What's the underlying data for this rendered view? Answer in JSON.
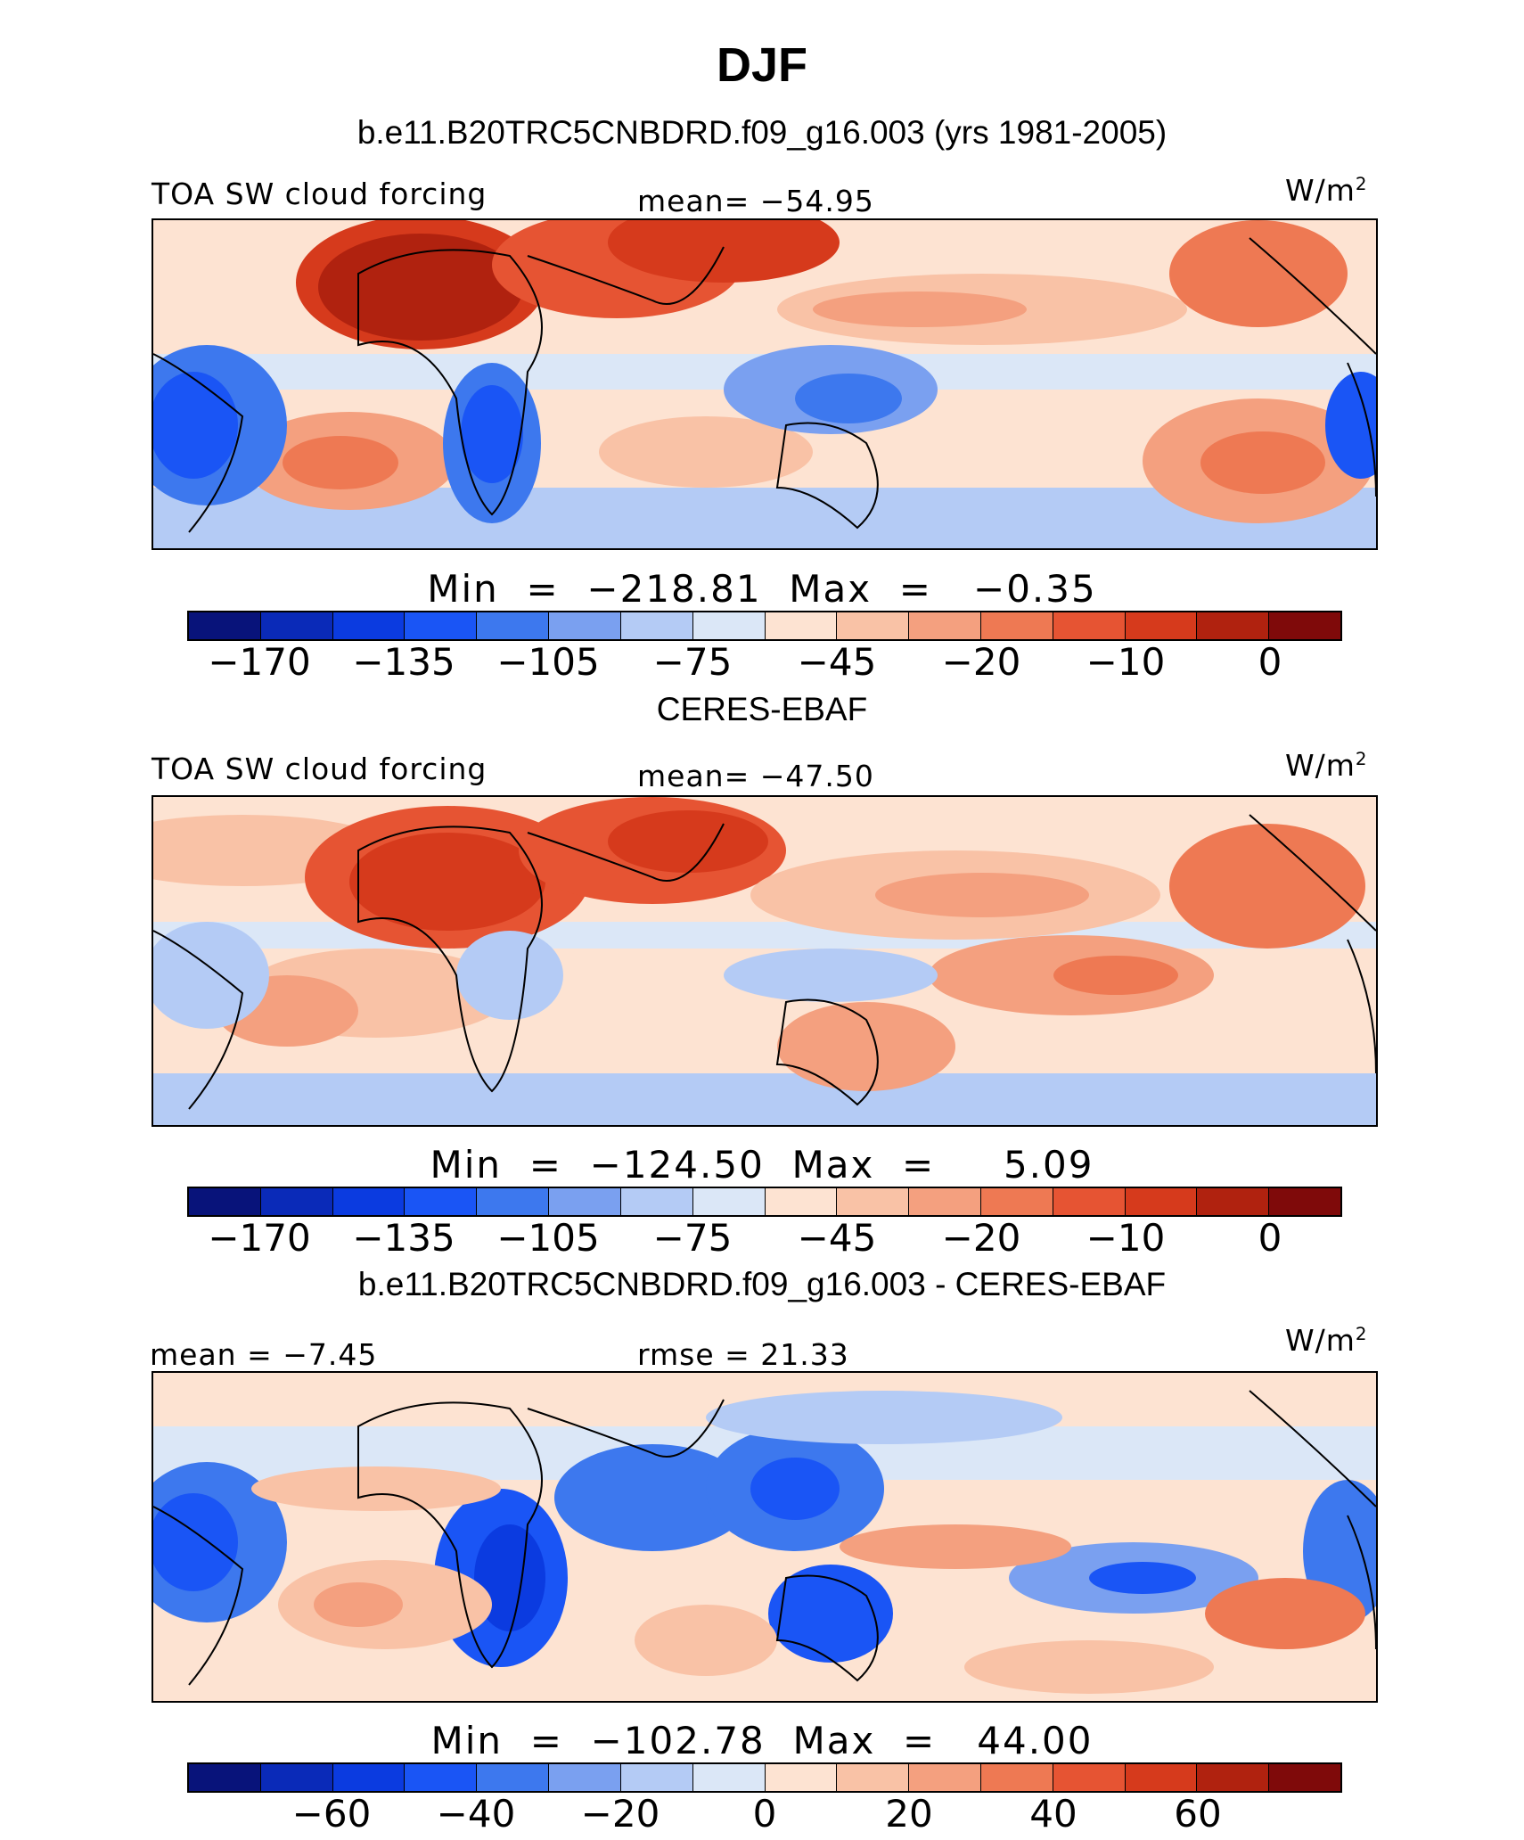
{
  "title": "DJF",
  "colors": {
    "model_scale": [
      "#08137a",
      "#0a2ab8",
      "#0b3be0",
      "#1a55f5",
      "#3d78ee",
      "#7aa0f0",
      "#b4cbf5",
      "#dbe7f7",
      "#fde3d2",
      "#f9c2a6",
      "#f4a07f",
      "#ee7953",
      "#e65433",
      "#d63a1c",
      "#b0220f",
      "#7f0a0a"
    ],
    "diff_scale": [
      "#08137a",
      "#0a2ab8",
      "#0b3be0",
      "#1a55f5",
      "#3d78ee",
      "#7aa0f0",
      "#b4cbf5",
      "#dbe7f7",
      "#fde3d2",
      "#f9c2a6",
      "#f4a07f",
      "#ee7953",
      "#e65433",
      "#d63a1c",
      "#b0220f",
      "#7f0a0a"
    ]
  },
  "panels": [
    {
      "heading": "b.e11.B20TRC5CNBDRD.f09_g16.003 (yrs 1981-2005)",
      "left_label": "TOA SW cloud forcing",
      "center_label": "mean=  −54.95",
      "units": "W/m",
      "units_sup": "2",
      "minmax": "Min  =  −218.81  Max  =   −0.35",
      "ticks": [
        "−170",
        "−135",
        "−105",
        "−75",
        "−45",
        "−20",
        "−10",
        "0"
      ],
      "colorbar": "model"
    },
    {
      "heading": "CERES-EBAF",
      "left_label": "TOA SW cloud forcing",
      "center_label": "mean=  −47.50",
      "units": "W/m",
      "units_sup": "2",
      "minmax": "Min  =  −124.50  Max  =     5.09",
      "ticks": [
        "−170",
        "−135",
        "−105",
        "−75",
        "−45",
        "−20",
        "−10",
        "0"
      ],
      "colorbar": "model"
    },
    {
      "heading": "b.e11.B20TRC5CNBDRD.f09_g16.003 - CERES-EBAF",
      "left_label": "mean =   −7.45",
      "center_label": "rmse =   21.33",
      "units": "W/m",
      "units_sup": "2",
      "minmax": "Min  =  −102.78  Max  =   44.00",
      "ticks": [
        "−60",
        "−40",
        "−20",
        "0",
        "20",
        "40",
        "60"
      ],
      "colorbar": "diff"
    }
  ]
}
